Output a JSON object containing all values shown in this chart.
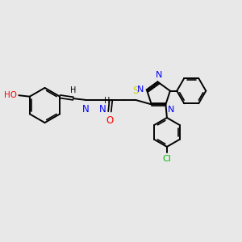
{
  "background_color": "#e8e8e8",
  "bond_color": "#000000",
  "N_color": "#0000ff",
  "O_color": "#ff0000",
  "S_color": "#cccc00",
  "Cl_color": "#00bb00",
  "HO_color": "#ff0000",
  "figsize": [
    3.0,
    3.0
  ],
  "dpi": 100,
  "xlim": [
    0,
    10
  ],
  "ylim": [
    0,
    10
  ]
}
